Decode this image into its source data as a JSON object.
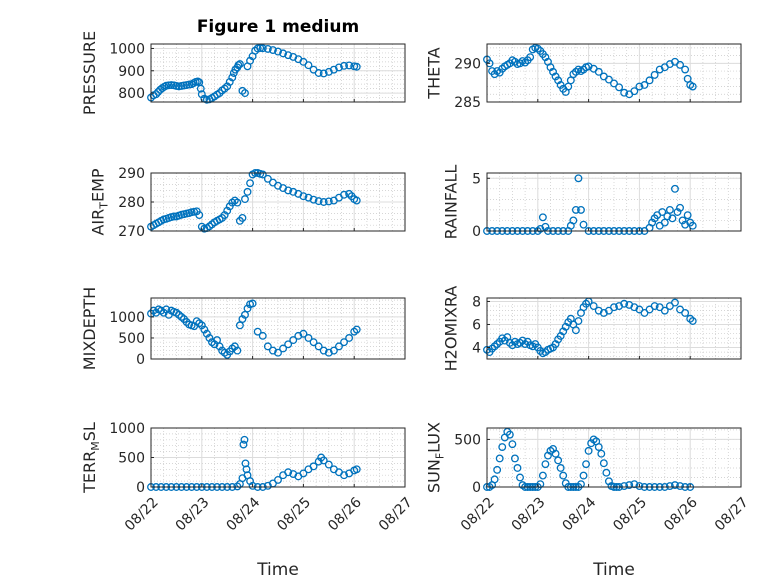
{
  "figure": {
    "title": "Figure 1 medium",
    "xlabel": "Time",
    "x_tick_labels": [
      "08/22",
      "08/23",
      "08/24",
      "08/25",
      "08/26",
      "08/27"
    ],
    "marker_color": "#0072BD",
    "grid_color": "#c8c8c8"
  },
  "chart_data": [
    {
      "type": "scatter",
      "position": "row1-left",
      "title": "Figure 1 medium",
      "ylabel": {
        "main": "PRESSURE",
        "sub": ""
      },
      "xlabel": "",
      "xlim": [
        22,
        27
      ],
      "ylim": [
        760,
        1020
      ],
      "yticks": [
        800,
        900,
        1000
      ],
      "x": [
        22.0,
        22.05,
        22.1,
        22.14,
        22.18,
        22.22,
        22.26,
        22.3,
        22.35,
        22.4,
        22.45,
        22.5,
        22.55,
        22.6,
        22.65,
        22.7,
        22.75,
        22.8,
        22.84,
        22.88,
        22.92,
        22.95,
        22.98,
        23.0,
        23.05,
        23.1,
        23.15,
        23.2,
        23.25,
        23.3,
        23.35,
        23.4,
        23.45,
        23.5,
        23.55,
        23.6,
        23.63,
        23.66,
        23.7,
        23.72,
        23.75,
        23.8,
        23.85,
        23.9,
        23.95,
        24.0,
        24.05,
        24.1,
        24.15,
        24.2,
        24.3,
        24.4,
        24.5,
        24.6,
        24.7,
        24.8,
        24.9,
        25.0,
        25.1,
        25.2,
        25.3,
        25.4,
        25.5,
        25.6,
        25.7,
        25.8,
        25.9,
        26.0,
        26.05
      ],
      "y": [
        780,
        790,
        795,
        805,
        815,
        822,
        828,
        833,
        835,
        836,
        835,
        832,
        830,
        832,
        834,
        836,
        838,
        840,
        845,
        850,
        852,
        848,
        820,
        795,
        775,
        770,
        772,
        778,
        785,
        793,
        800,
        812,
        820,
        830,
        850,
        870,
        890,
        905,
        915,
        925,
        930,
        810,
        800,
        920,
        945,
        965,
        990,
        1000,
        1002,
        1001,
        998,
        993,
        986,
        978,
        970,
        962,
        952,
        940,
        925,
        905,
        890,
        888,
        895,
        905,
        915,
        922,
        924,
        920,
        918
      ]
    },
    {
      "type": "scatter",
      "position": "row1-right",
      "title": "",
      "ylabel": {
        "main": "THETA",
        "sub": ""
      },
      "xlabel": "",
      "xlim": [
        22,
        27
      ],
      "ylim": [
        285,
        292.5
      ],
      "yticks": [
        285,
        290
      ],
      "x": [
        22.0,
        22.05,
        22.1,
        22.15,
        22.2,
        22.25,
        22.3,
        22.35,
        22.4,
        22.45,
        22.5,
        22.55,
        22.6,
        22.65,
        22.7,
        22.75,
        22.8,
        22.85,
        22.9,
        22.95,
        23.0,
        23.05,
        23.1,
        23.15,
        23.2,
        23.25,
        23.3,
        23.35,
        23.4,
        23.45,
        23.5,
        23.55,
        23.6,
        23.65,
        23.7,
        23.75,
        23.8,
        23.85,
        23.9,
        23.95,
        24.0,
        24.1,
        24.2,
        24.3,
        24.4,
        24.5,
        24.6,
        24.7,
        24.8,
        24.9,
        25.0,
        25.1,
        25.2,
        25.3,
        25.4,
        25.5,
        25.6,
        25.7,
        25.8,
        25.9,
        25.95,
        26.0,
        26.05
      ],
      "y": [
        290.5,
        290.0,
        289.0,
        288.6,
        289.0,
        288.8,
        289.3,
        289.6,
        289.8,
        290.0,
        290.4,
        290.2,
        289.9,
        290.0,
        290.3,
        290.1,
        290.4,
        290.8,
        291.8,
        292.0,
        291.9,
        291.6,
        291.2,
        290.8,
        290.2,
        289.5,
        288.9,
        288.3,
        287.8,
        287.2,
        286.7,
        286.3,
        287.0,
        287.8,
        288.6,
        288.9,
        289.2,
        289.0,
        289.2,
        289.5,
        289.6,
        289.3,
        288.9,
        288.3,
        287.9,
        287.4,
        286.9,
        286.2,
        286.0,
        286.4,
        287.0,
        287.2,
        287.8,
        288.5,
        289.2,
        289.5,
        289.9,
        290.2,
        289.8,
        289.2,
        288.0,
        287.2,
        287.0
      ]
    },
    {
      "type": "scatter",
      "position": "row2-left",
      "title": "",
      "ylabel": {
        "main": "AIR",
        "sub": "T",
        "rest": "EMP"
      },
      "xlabel": "",
      "xlim": [
        22,
        27
      ],
      "ylim": [
        270,
        290
      ],
      "yticks": [
        270,
        280,
        290
      ],
      "x": [
        22.0,
        22.05,
        22.1,
        22.15,
        22.2,
        22.25,
        22.3,
        22.35,
        22.4,
        22.45,
        22.5,
        22.55,
        22.6,
        22.65,
        22.7,
        22.75,
        22.8,
        22.85,
        22.9,
        22.95,
        23.0,
        23.05,
        23.1,
        23.15,
        23.2,
        23.25,
        23.3,
        23.35,
        23.4,
        23.45,
        23.5,
        23.55,
        23.6,
        23.65,
        23.7,
        23.75,
        23.8,
        23.85,
        23.9,
        23.95,
        24.0,
        24.05,
        24.1,
        24.15,
        24.2,
        24.3,
        24.4,
        24.5,
        24.6,
        24.7,
        24.8,
        24.9,
        25.0,
        25.1,
        25.2,
        25.3,
        25.4,
        25.5,
        25.6,
        25.7,
        25.8,
        25.9,
        25.95,
        26.0,
        26.05
      ],
      "y": [
        271.5,
        272.0,
        272.5,
        273.0,
        273.5,
        274.0,
        274.2,
        274.5,
        274.8,
        275.0,
        275.0,
        275.3,
        275.6,
        275.8,
        276.0,
        276.2,
        276.5,
        276.6,
        276.8,
        275.5,
        271.5,
        270.8,
        271.0,
        271.6,
        272.3,
        273.0,
        273.5,
        274.0,
        274.5,
        275.5,
        277.0,
        278.5,
        279.8,
        280.5,
        279.8,
        273.5,
        274.5,
        281.0,
        283.5,
        286.5,
        289.5,
        290.0,
        290.0,
        289.7,
        289.5,
        288.0,
        286.7,
        285.6,
        284.8,
        284.0,
        283.5,
        282.8,
        282.0,
        281.5,
        280.8,
        280.3,
        280.0,
        280.2,
        280.5,
        281.5,
        282.5,
        282.8,
        282.0,
        281.0,
        280.5
      ]
    },
    {
      "type": "scatter",
      "position": "row2-right",
      "title": "",
      "ylabel": {
        "main": "RAINFALL",
        "sub": ""
      },
      "xlabel": "",
      "xlim": [
        22,
        27
      ],
      "ylim": [
        0,
        5.5
      ],
      "yticks": [
        0,
        5
      ],
      "x": [
        22.0,
        22.1,
        22.2,
        22.3,
        22.4,
        22.5,
        22.6,
        22.7,
        22.8,
        22.9,
        23.0,
        23.05,
        23.1,
        23.15,
        23.2,
        23.3,
        23.4,
        23.5,
        23.6,
        23.65,
        23.7,
        23.75,
        23.8,
        23.85,
        23.9,
        24.0,
        24.1,
        24.2,
        24.3,
        24.4,
        24.5,
        24.6,
        24.7,
        24.8,
        24.9,
        25.0,
        25.1,
        25.2,
        25.25,
        25.3,
        25.35,
        25.4,
        25.45,
        25.5,
        25.55,
        25.6,
        25.65,
        25.7,
        25.75,
        25.8,
        25.85,
        25.9,
        25.95,
        26.0,
        26.05
      ],
      "y": [
        0,
        0,
        0,
        0,
        0,
        0,
        0,
        0,
        0,
        0,
        0,
        0.2,
        1.3,
        0.4,
        0,
        0,
        0,
        0,
        0,
        0.5,
        1.0,
        2.0,
        5.0,
        2.0,
        0.6,
        0,
        0,
        0,
        0,
        0,
        0,
        0,
        0,
        0,
        0,
        0,
        0,
        0.3,
        0.8,
        1.2,
        1.5,
        0.5,
        1.8,
        0.8,
        1.4,
        2.0,
        1.2,
        4.0,
        1.8,
        2.2,
        1.0,
        0.6,
        1.5,
        0.8,
        0.5
      ]
    },
    {
      "type": "scatter",
      "position": "row3-left",
      "title": "",
      "ylabel": {
        "main": "MIXDEPTH",
        "sub": ""
      },
      "xlabel": "",
      "xlim": [
        22,
        27
      ],
      "ylim": [
        0,
        1450
      ],
      "yticks": [
        0,
        500,
        1000
      ],
      "x": [
        22.0,
        22.05,
        22.1,
        22.15,
        22.2,
        22.25,
        22.3,
        22.35,
        22.4,
        22.45,
        22.5,
        22.55,
        22.6,
        22.65,
        22.7,
        22.75,
        22.8,
        22.85,
        22.9,
        22.95,
        23.0,
        23.05,
        23.1,
        23.15,
        23.2,
        23.25,
        23.3,
        23.35,
        23.4,
        23.45,
        23.5,
        23.55,
        23.6,
        23.65,
        23.7,
        23.75,
        23.8,
        23.85,
        23.9,
        23.95,
        24.0,
        24.1,
        24.2,
        24.3,
        24.4,
        24.5,
        24.6,
        24.7,
        24.8,
        24.9,
        25.0,
        25.1,
        25.2,
        25.3,
        25.4,
        25.5,
        25.6,
        25.7,
        25.8,
        25.9,
        26.0,
        26.05
      ],
      "y": [
        1080,
        1150,
        1100,
        1180,
        1150,
        1100,
        1180,
        1050,
        1150,
        1120,
        1100,
        1050,
        1000,
        950,
        880,
        820,
        800,
        780,
        900,
        850,
        800,
        700,
        600,
        500,
        400,
        350,
        450,
        300,
        200,
        150,
        100,
        180,
        250,
        300,
        200,
        800,
        950,
        1050,
        1200,
        1300,
        1320,
        650,
        550,
        300,
        200,
        150,
        250,
        350,
        450,
        550,
        600,
        500,
        400,
        300,
        200,
        150,
        200,
        300,
        400,
        500,
        650,
        700
      ]
    },
    {
      "type": "scatter",
      "position": "row3-right",
      "title": "",
      "ylabel": {
        "main": "H2OMIXRA",
        "sub": ""
      },
      "xlabel": "",
      "xlim": [
        22,
        27
      ],
      "ylim": [
        3,
        8.3
      ],
      "yticks": [
        4,
        6,
        8
      ],
      "x": [
        22.0,
        22.05,
        22.1,
        22.15,
        22.2,
        22.25,
        22.3,
        22.35,
        22.4,
        22.45,
        22.5,
        22.55,
        22.6,
        22.65,
        22.7,
        22.75,
        22.8,
        22.85,
        22.9,
        22.95,
        23.0,
        23.05,
        23.1,
        23.15,
        23.2,
        23.25,
        23.3,
        23.35,
        23.4,
        23.45,
        23.5,
        23.55,
        23.6,
        23.65,
        23.7,
        23.75,
        23.8,
        23.85,
        23.9,
        23.95,
        24.0,
        24.1,
        24.2,
        24.3,
        24.4,
        24.5,
        24.6,
        24.7,
        24.8,
        24.9,
        25.0,
        25.1,
        25.2,
        25.3,
        25.4,
        25.5,
        25.6,
        25.7,
        25.8,
        25.9,
        26.0,
        26.05
      ],
      "y": [
        3.8,
        3.6,
        3.9,
        4.1,
        4.3,
        4.5,
        4.8,
        4.6,
        4.9,
        4.4,
        4.2,
        4.5,
        4.3,
        4.4,
        4.6,
        4.3,
        4.5,
        4.2,
        4.1,
        4.3,
        4.0,
        3.7,
        3.5,
        3.6,
        3.8,
        3.9,
        4.0,
        4.3,
        4.7,
        5.0,
        5.4,
        5.8,
        6.2,
        6.5,
        6.0,
        5.5,
        6.3,
        7.0,
        7.5,
        7.8,
        8.0,
        7.6,
        7.2,
        7.0,
        7.2,
        7.5,
        7.6,
        7.8,
        7.7,
        7.5,
        7.3,
        7.0,
        7.3,
        7.6,
        7.5,
        7.2,
        7.6,
        7.9,
        7.3,
        7.0,
        6.5,
        6.3
      ]
    },
    {
      "type": "scatter",
      "position": "row4-left",
      "title": "",
      "ylabel": {
        "main": "TERR",
        "sub": "M",
        "rest": "SL"
      },
      "xlabel": "Time",
      "xlim": [
        22,
        27
      ],
      "ylim": [
        0,
        1000
      ],
      "yticks": [
        0,
        500,
        1000
      ],
      "x": [
        22.0,
        22.1,
        22.2,
        22.3,
        22.4,
        22.5,
        22.6,
        22.7,
        22.8,
        22.9,
        23.0,
        23.1,
        23.2,
        23.3,
        23.4,
        23.5,
        23.6,
        23.7,
        23.75,
        23.8,
        23.82,
        23.84,
        23.86,
        23.88,
        23.9,
        23.95,
        24.0,
        24.1,
        24.2,
        24.3,
        24.4,
        24.5,
        24.6,
        24.7,
        24.8,
        24.9,
        25.0,
        25.1,
        25.2,
        25.3,
        25.35,
        25.4,
        25.5,
        25.6,
        25.7,
        25.8,
        25.9,
        26.0,
        26.05
      ],
      "y": [
        0,
        0,
        0,
        0,
        0,
        0,
        0,
        0,
        0,
        0,
        0,
        0,
        0,
        0,
        0,
        0,
        0,
        10,
        50,
        150,
        720,
        800,
        400,
        300,
        200,
        100,
        20,
        0,
        0,
        20,
        60,
        120,
        200,
        250,
        220,
        180,
        230,
        300,
        350,
        430,
        500,
        450,
        380,
        300,
        250,
        200,
        230,
        280,
        300
      ]
    },
    {
      "type": "scatter",
      "position": "row4-right",
      "title": "",
      "ylabel": {
        "main": "SUN",
        "sub": "F",
        "rest": "LUX"
      },
      "xlabel": "Time",
      "xlim": [
        22,
        27
      ],
      "ylim": [
        0,
        620
      ],
      "yticks": [
        0,
        500
      ],
      "x": [
        22.0,
        22.05,
        22.1,
        22.15,
        22.2,
        22.25,
        22.3,
        22.35,
        22.4,
        22.45,
        22.5,
        22.55,
        22.6,
        22.65,
        22.7,
        22.75,
        22.8,
        22.85,
        22.9,
        22.95,
        23.0,
        23.05,
        23.1,
        23.15,
        23.2,
        23.25,
        23.3,
        23.35,
        23.4,
        23.45,
        23.5,
        23.55,
        23.6,
        23.65,
        23.7,
        23.75,
        23.8,
        23.85,
        23.9,
        23.95,
        24.0,
        24.05,
        24.1,
        24.15,
        24.2,
        24.25,
        24.3,
        24.35,
        24.4,
        24.45,
        24.5,
        24.55,
        24.6,
        24.7,
        24.8,
        24.9,
        25.0,
        25.1,
        25.2,
        25.3,
        25.4,
        25.5,
        25.6,
        25.7,
        25.8,
        25.9,
        26.0
      ],
      "y": [
        0,
        0,
        20,
        80,
        180,
        300,
        420,
        520,
        580,
        550,
        450,
        300,
        200,
        100,
        20,
        0,
        0,
        0,
        0,
        0,
        0,
        30,
        120,
        240,
        330,
        380,
        400,
        350,
        280,
        200,
        120,
        40,
        0,
        0,
        0,
        0,
        0,
        30,
        120,
        240,
        380,
        460,
        500,
        480,
        420,
        350,
        250,
        150,
        60,
        10,
        0,
        0,
        0,
        10,
        20,
        30,
        10,
        0,
        0,
        0,
        0,
        0,
        10,
        20,
        10,
        0,
        0
      ]
    }
  ]
}
